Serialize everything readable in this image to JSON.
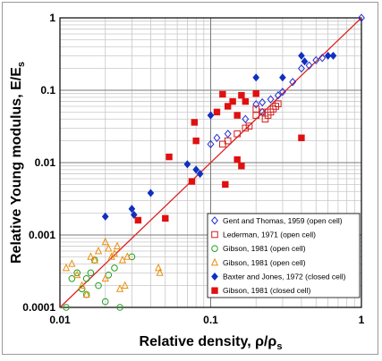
{
  "chart_data": {
    "type": "scatter",
    "title": "",
    "xlabel": "Relative density, ρ/ρs",
    "ylabel": "Relative Young modulus, E/Es",
    "xscale": "log",
    "yscale": "log",
    "xlim": [
      0.01,
      1
    ],
    "ylim": [
      0.0001,
      1
    ],
    "x_ticks": [
      "0.01",
      "0.1",
      "1"
    ],
    "y_ticks": [
      "0.0001",
      "0.001",
      "0.01",
      "0.1",
      "1"
    ],
    "grid": true,
    "legend_position": "bottom-right",
    "reference_line": {
      "x": [
        0.01,
        1
      ],
      "y": [
        0.0001,
        1
      ],
      "color": "#e02020"
    },
    "series": [
      {
        "name": "Gent and Thomas, 1959 (open cell)",
        "marker": "diamond-open",
        "color": "#2030d0",
        "points": [
          [
            0.2,
            0.064
          ],
          [
            0.22,
            0.068
          ],
          [
            0.25,
            0.075
          ],
          [
            0.28,
            0.085
          ],
          [
            0.3,
            0.095
          ],
          [
            0.35,
            0.13
          ],
          [
            0.4,
            0.2
          ],
          [
            0.45,
            0.22
          ],
          [
            0.5,
            0.26
          ],
          [
            0.55,
            0.28
          ],
          [
            0.1,
            0.018
          ],
          [
            0.11,
            0.022
          ],
          [
            0.13,
            0.025
          ],
          [
            0.17,
            0.04
          ],
          [
            0.22,
            0.05
          ],
          [
            1.0,
            1.0
          ]
        ]
      },
      {
        "name": "Lederman, 1971 (open cell)",
        "marker": "square-open",
        "color": "#d02020",
        "points": [
          [
            0.12,
            0.018
          ],
          [
            0.13,
            0.02
          ],
          [
            0.15,
            0.025
          ],
          [
            0.17,
            0.03
          ],
          [
            0.18,
            0.032
          ],
          [
            0.2,
            0.055
          ],
          [
            0.22,
            0.05
          ],
          [
            0.23,
            0.04
          ],
          [
            0.24,
            0.045
          ],
          [
            0.25,
            0.05
          ],
          [
            0.26,
            0.055
          ],
          [
            0.27,
            0.06
          ],
          [
            0.28,
            0.065
          ],
          [
            0.2,
            0.045
          ]
        ]
      },
      {
        "name": "Gibson, 1981 (open cell)",
        "marker": "circle-open",
        "color": "#20a020",
        "points": [
          [
            0.011,
            0.0001
          ],
          [
            0.012,
            0.00025
          ],
          [
            0.013,
            0.0003
          ],
          [
            0.015,
            0.00025
          ],
          [
            0.016,
            0.0003
          ],
          [
            0.017,
            0.00045
          ],
          [
            0.015,
            0.00015
          ],
          [
            0.02,
            0.00012
          ],
          [
            0.025,
            0.0001
          ],
          [
            0.018,
            0.0002
          ],
          [
            0.021,
            0.00028
          ],
          [
            0.023,
            0.00035
          ],
          [
            0.03,
            0.0005
          ],
          [
            0.014,
            0.00018
          ]
        ]
      },
      {
        "name": "Gibson, 1981 (open cell)",
        "marker": "triangle-open",
        "color": "#e89010",
        "points": [
          [
            0.011,
            0.00035
          ],
          [
            0.012,
            0.0004
          ],
          [
            0.013,
            0.00028
          ],
          [
            0.014,
            0.0002
          ],
          [
            0.015,
            0.00015
          ],
          [
            0.016,
            0.0005
          ],
          [
            0.017,
            0.00045
          ],
          [
            0.018,
            0.0006
          ],
          [
            0.02,
            0.0008
          ],
          [
            0.021,
            0.00065
          ],
          [
            0.022,
            0.0005
          ],
          [
            0.023,
            0.00055
          ],
          [
            0.024,
            0.0007
          ],
          [
            0.026,
            0.00045
          ],
          [
            0.028,
            0.0005
          ],
          [
            0.045,
            0.00035
          ],
          [
            0.046,
            0.0003
          ],
          [
            0.02,
            0.00025
          ],
          [
            0.025,
            0.00018
          ],
          [
            0.027,
            0.0002
          ]
        ]
      },
      {
        "name": "Baxter and Jones, 1972 (closed cell)",
        "marker": "diamond-filled",
        "color": "#1030c0",
        "points": [
          [
            0.02,
            0.0018
          ],
          [
            0.03,
            0.0023
          ],
          [
            0.031,
            0.0019
          ],
          [
            0.04,
            0.0038
          ],
          [
            0.07,
            0.0095
          ],
          [
            0.08,
            0.008
          ],
          [
            0.085,
            0.007
          ],
          [
            0.1,
            0.045
          ],
          [
            0.2,
            0.15
          ],
          [
            0.3,
            0.15
          ],
          [
            0.4,
            0.3
          ],
          [
            0.42,
            0.25
          ],
          [
            0.6,
            0.3
          ],
          [
            0.65,
            0.3
          ]
        ]
      },
      {
        "name": "Gibson, 1981 (closed cell)",
        "marker": "square-filled",
        "color": "#e01010",
        "points": [
          [
            0.033,
            0.0016
          ],
          [
            0.05,
            0.0017
          ],
          [
            0.053,
            0.012
          ],
          [
            0.075,
            0.0055
          ],
          [
            0.078,
            0.036
          ],
          [
            0.08,
            0.02
          ],
          [
            0.11,
            0.05
          ],
          [
            0.12,
            0.088
          ],
          [
            0.125,
            0.005
          ],
          [
            0.13,
            0.06
          ],
          [
            0.14,
            0.07
          ],
          [
            0.15,
            0.045
          ],
          [
            0.15,
            0.011
          ],
          [
            0.16,
            0.009
          ],
          [
            0.16,
            0.085
          ],
          [
            0.17,
            0.07
          ],
          [
            0.2,
            0.09
          ],
          [
            0.4,
            0.022
          ]
        ]
      }
    ]
  }
}
